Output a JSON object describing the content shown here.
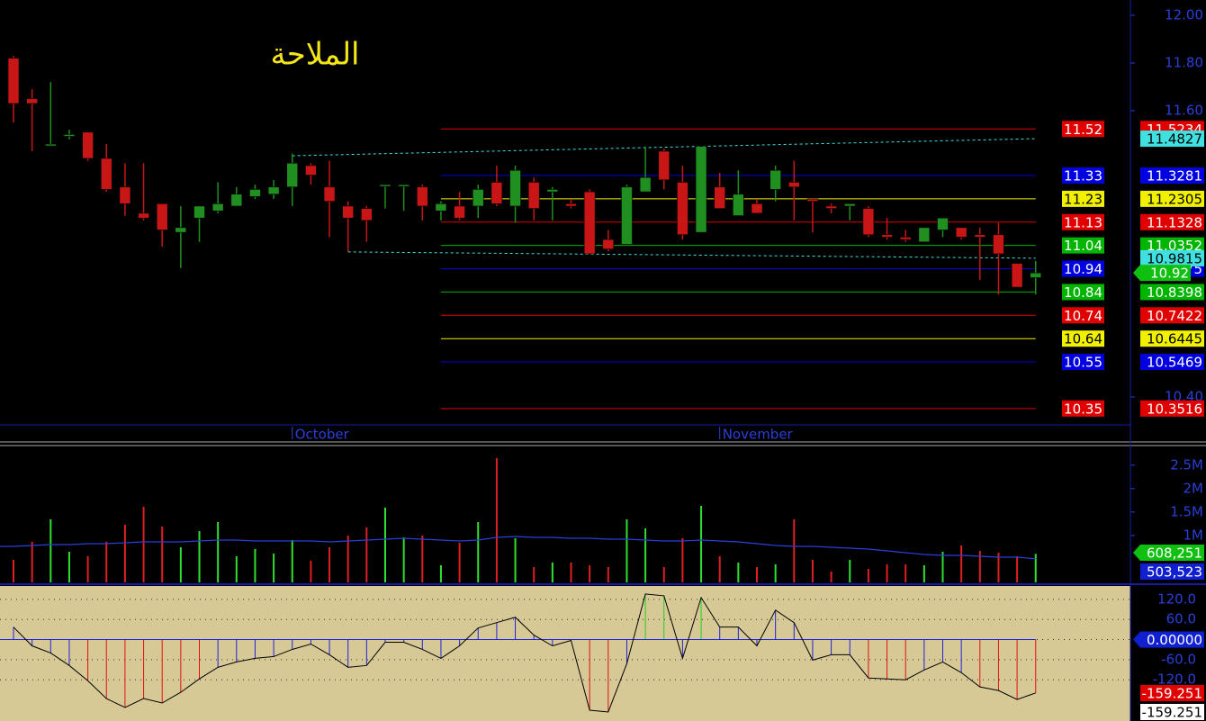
{
  "chart_data": [
    {
      "type": "candlestick",
      "title": "الملاحة",
      "categories": [
        null,
        null,
        null,
        null,
        null,
        null,
        null,
        null,
        null,
        null,
        null,
        null,
        null,
        null,
        null,
        null,
        null,
        null,
        null,
        null,
        null,
        null,
        null,
        null,
        null,
        null,
        null,
        null,
        null,
        null,
        null,
        null,
        null,
        null,
        null,
        null,
        null,
        null,
        null,
        null,
        null,
        null,
        null,
        null,
        null,
        null,
        null,
        null,
        null,
        null,
        null,
        null,
        null,
        null,
        null,
        null
      ],
      "open": [
        11.82,
        11.65,
        11.46,
        11.5,
        11.51,
        11.4,
        11.28,
        11.17,
        11.21,
        11.09,
        11.15,
        11.18,
        11.2,
        11.24,
        11.25,
        11.28,
        11.37,
        11.28,
        11.2,
        11.19,
        11.29,
        11.29,
        11.28,
        11.18,
        11.2,
        11.2,
        11.3,
        11.2,
        11.3,
        11.26,
        11.21,
        11.26,
        11.06,
        11.04,
        11.26,
        11.43,
        11.3,
        11.09,
        11.28,
        11.16,
        11.21,
        11.27,
        11.3,
        11.23,
        11.2,
        11.2,
        11.19,
        11.08,
        11.07,
        11.05,
        11.1,
        11.11,
        11.08,
        11.08,
        10.96,
        10.9
      ],
      "high": [
        11.83,
        11.69,
        11.72,
        11.52,
        11.51,
        11.46,
        11.38,
        11.38,
        11.21,
        11.2,
        11.2,
        11.3,
        11.28,
        11.29,
        11.31,
        11.42,
        11.38,
        11.39,
        11.22,
        11.2,
        11.29,
        11.29,
        11.29,
        11.22,
        11.26,
        11.29,
        11.37,
        11.37,
        11.32,
        11.28,
        11.23,
        11.27,
        11.1,
        11.29,
        11.45,
        11.44,
        11.37,
        11.45,
        11.34,
        11.35,
        11.23,
        11.37,
        11.39,
        11.23,
        11.21,
        11.21,
        11.2,
        11.15,
        11.1,
        11.11,
        11.15,
        11.11,
        11.11,
        11.13,
        10.96,
        10.97
      ],
      "low": [
        11.55,
        11.43,
        11.46,
        11.48,
        11.39,
        11.26,
        11.16,
        11.14,
        11.03,
        10.94,
        11.05,
        11.17,
        11.2,
        11.23,
        11.23,
        11.2,
        11.29,
        11.07,
        11.01,
        11.05,
        11.19,
        11.18,
        11.14,
        11.14,
        11.14,
        11.15,
        11.2,
        11.13,
        11.14,
        11.14,
        11.19,
        11.0,
        11.01,
        11.04,
        11.26,
        11.27,
        11.06,
        11.09,
        11.19,
        11.16,
        11.17,
        11.22,
        11.14,
        11.09,
        11.17,
        11.14,
        11.07,
        11.06,
        11.05,
        11.05,
        11.07,
        11.06,
        10.89,
        10.83,
        10.86,
        10.83
      ],
      "close": [
        11.63,
        11.63,
        11.46,
        11.5,
        11.4,
        11.27,
        11.21,
        11.15,
        11.1,
        11.11,
        11.2,
        11.21,
        11.25,
        11.27,
        11.28,
        11.38,
        11.33,
        11.22,
        11.15,
        11.14,
        11.29,
        11.29,
        11.2,
        11.21,
        11.15,
        11.27,
        11.21,
        11.35,
        11.19,
        11.27,
        11.2,
        11.0,
        11.02,
        11.28,
        11.32,
        11.31,
        11.08,
        11.45,
        11.19,
        11.25,
        11.17,
        11.35,
        11.28,
        11.22,
        11.19,
        11.21,
        11.08,
        11.07,
        11.06,
        11.11,
        11.15,
        11.07,
        11.07,
        11.0,
        10.86,
        10.92
      ],
      "up_color": "#1f8f1f",
      "down_color": "#c81616",
      "ylim": [
        10.283,
        12.064
      ],
      "yticks": [
        {
          "value": 12,
          "label": "12.00"
        },
        {
          "value": 11.8,
          "label": "11.80"
        },
        {
          "value": 11.6,
          "label": "11.60"
        },
        {
          "value": 10.4,
          "label": "10.40"
        }
      ],
      "month_labels": [
        {
          "index": 15,
          "label": "October"
        },
        {
          "index": 38,
          "label": "November"
        }
      ],
      "levels_start": 23,
      "levels": [
        {
          "value": 11.5234,
          "label": "11.52",
          "color": "#e00000"
        },
        {
          "value": 11.3281,
          "label": "11.33",
          "color": "#0000e0"
        },
        {
          "value": 11.2305,
          "label": "11.23",
          "color": "#f0f000"
        },
        {
          "value": 11.1328,
          "label": "11.13",
          "color": "#e00000"
        },
        {
          "value": 11.0352,
          "label": "11.04",
          "color": "#00b400"
        },
        {
          "value": 10.9375,
          "label": "10.94",
          "color": "#0000e0"
        },
        {
          "value": 10.8398,
          "label": "10.84",
          "color": "#00b400"
        },
        {
          "value": 10.7422,
          "label": "10.74",
          "color": "#e00000"
        },
        {
          "value": 10.6445,
          "label": "10.64",
          "color": "#f0f000"
        },
        {
          "value": 10.5469,
          "label": "10.55",
          "color": "#0000e0"
        },
        {
          "value": 10.3516,
          "label": "10.35",
          "color": "#e00000"
        }
      ],
      "channels": [
        {
          "from": 15,
          "to": 55,
          "start": 11.411,
          "end": 11.4827,
          "color": "#40e0e0"
        },
        {
          "from": 18,
          "to": 55,
          "start": 11.008,
          "end": 10.9815,
          "color": "#40e0e0"
        }
      ]
    },
    {
      "type": "volume",
      "values": [
        480000,
        864000,
        1344000,
        652800,
        556800,
        864000,
        1228800,
        1612800,
        1190400,
        748800,
        1094400,
        1286400,
        556800,
        710400,
        614400,
        902400,
        460800,
        748800,
        998400,
        1171200,
        1593600,
        960000,
        998400,
        364800,
        844800,
        1286400,
        2649600,
        940800,
        326400,
        422400,
        422400,
        364800,
        326400,
        1344000,
        1152000,
        326400,
        940800,
        1632000,
        556800,
        422400,
        326400,
        384000,
        1344000,
        480000,
        230400,
        480000,
        288000,
        384000,
        384000,
        364800,
        652800,
        787200,
        672000,
        633600,
        556800,
        608251
      ],
      "last_label": "608,251",
      "moving_average": [
        768000,
        787200,
        806400,
        806400,
        825600,
        825600,
        844800,
        864000,
        864000,
        864000,
        883200,
        902400,
        902400,
        883200,
        883200,
        883200,
        883200,
        864000,
        883200,
        902400,
        921600,
        940800,
        921600,
        902400,
        883200,
        902400,
        960000,
        979200,
        960000,
        960000,
        940800,
        940800,
        921600,
        921600,
        902400,
        883200,
        883200,
        902400,
        883200,
        864000,
        825600,
        787200,
        768000,
        768000,
        748800,
        729600,
        710400,
        672000,
        633600,
        595200,
        576000,
        576000,
        556800,
        537600,
        537600,
        503523
      ],
      "ma_last_label": "503,523",
      "ma_color": "#2a3fd8",
      "up_color": "#30e030",
      "down_color": "#e02020",
      "ylim": [
        0,
        2880000
      ],
      "yticks": [
        {
          "value": 2500000,
          "label": "2.5M"
        },
        {
          "value": 2000000,
          "label": "2M"
        },
        {
          "value": 1500000,
          "label": "1.5M"
        },
        {
          "value": 1000000,
          "label": "1M"
        }
      ]
    },
    {
      "type": "oscillator",
      "values": [
        37.3,
        -18.7,
        -40,
        -77.3,
        -122.7,
        -176,
        -202.7,
        -176,
        -189.3,
        -157.3,
        -117.3,
        -82.7,
        -66.7,
        -56,
        -50.7,
        -29.3,
        -13.3,
        -45.3,
        -82.7,
        -77.3,
        -8,
        -8,
        -29.3,
        -56,
        -18.7,
        34.7,
        50.7,
        66.7,
        13.3,
        -18.7,
        -2.7,
        -210.7,
        -216,
        -72,
        136,
        130.7,
        -56,
        125.3,
        37.3,
        37.3,
        -18.7,
        88,
        50.7,
        -61.3,
        -45.3,
        -45.3,
        -114.7,
        -117.3,
        -120,
        -90.7,
        -66.7,
        -98.7,
        -141.3,
        -152,
        -178.7,
        -159.251
      ],
      "background": "#d7c995",
      "line_color": "#000000",
      "bar_color": "#2020e0",
      "high_color": "#20d020",
      "low_color": "#e01010",
      "ylim": [
        -243,
        160
      ],
      "yticks": [
        {
          "value": 120,
          "label": "120.0"
        },
        {
          "value": 60,
          "label": "60.0"
        },
        {
          "value": 0,
          "label": "0.00000"
        },
        {
          "value": -60,
          "label": "-60.0"
        },
        {
          "value": -120,
          "label": "-120.0"
        }
      ],
      "grid": true
    }
  ]
}
